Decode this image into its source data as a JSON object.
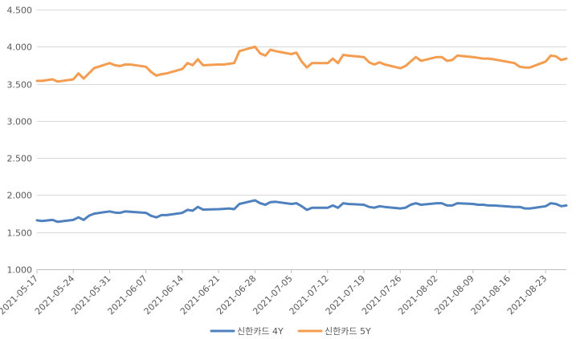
{
  "chart_data": {
    "type": "line",
    "title": "",
    "xlabel": "",
    "ylabel": "",
    "ylim": [
      1.0,
      4.5
    ],
    "yticks": [
      "1.000",
      "1.500",
      "2.000",
      "2.500",
      "3.000",
      "3.500",
      "4.000",
      "4.500"
    ],
    "x_tick_labels": [
      "2021-05-17",
      "2021-05-24",
      "2021-05-31",
      "2021-06-07",
      "2021-06-14",
      "2021-06-21",
      "2021-06-28",
      "2021-07-05",
      "2021-07-12",
      "2021-07-19",
      "2021-07-26",
      "2021-08-02",
      "2021-08-09",
      "2021-08-16",
      "2021-08-23"
    ],
    "grid": true,
    "legend_position": "bottom",
    "x": [
      "2021-05-17",
      "2021-05-18",
      "2021-05-20",
      "2021-05-21",
      "2021-05-24",
      "2021-05-25",
      "2021-05-26",
      "2021-05-27",
      "2021-05-28",
      "2021-05-31",
      "2021-06-01",
      "2021-06-02",
      "2021-06-03",
      "2021-06-04",
      "2021-06-07",
      "2021-06-08",
      "2021-06-09",
      "2021-06-10",
      "2021-06-11",
      "2021-06-14",
      "2021-06-15",
      "2021-06-16",
      "2021-06-17",
      "2021-06-18",
      "2021-06-21",
      "2021-06-22",
      "2021-06-23",
      "2021-06-24",
      "2021-06-25",
      "2021-06-28",
      "2021-06-29",
      "2021-06-30",
      "2021-07-01",
      "2021-07-02",
      "2021-07-05",
      "2021-07-06",
      "2021-07-07",
      "2021-07-08",
      "2021-07-09",
      "2021-07-12",
      "2021-07-13",
      "2021-07-14",
      "2021-07-15",
      "2021-07-16",
      "2021-07-19",
      "2021-07-20",
      "2021-07-21",
      "2021-07-22",
      "2021-07-23",
      "2021-07-26",
      "2021-07-27",
      "2021-07-28",
      "2021-07-29",
      "2021-07-30",
      "2021-08-02",
      "2021-08-03",
      "2021-08-04",
      "2021-08-05",
      "2021-08-06",
      "2021-08-09",
      "2021-08-10",
      "2021-08-11",
      "2021-08-12",
      "2021-08-13",
      "2021-08-17",
      "2021-08-18",
      "2021-08-19",
      "2021-08-20",
      "2021-08-23",
      "2021-08-24",
      "2021-08-25",
      "2021-08-26",
      "2021-08-27"
    ],
    "series": [
      {
        "name": "신한카드 4Y",
        "color": "#4E81BD",
        "values": [
          1.66,
          1.65,
          1.665,
          1.64,
          1.665,
          1.7,
          1.665,
          1.72,
          1.75,
          1.78,
          1.765,
          1.76,
          1.78,
          1.775,
          1.76,
          1.72,
          1.7,
          1.73,
          1.73,
          1.76,
          1.8,
          1.79,
          1.84,
          1.805,
          1.81,
          1.815,
          1.82,
          1.81,
          1.88,
          1.93,
          1.89,
          1.87,
          1.905,
          1.91,
          1.88,
          1.89,
          1.85,
          1.8,
          1.83,
          1.83,
          1.86,
          1.83,
          1.89,
          1.88,
          1.87,
          1.84,
          1.83,
          1.85,
          1.84,
          1.82,
          1.83,
          1.87,
          1.89,
          1.87,
          1.89,
          1.89,
          1.86,
          1.86,
          1.89,
          1.88,
          1.87,
          1.87,
          1.86,
          1.86,
          1.84,
          1.84,
          1.82,
          1.82,
          1.85,
          1.89,
          1.88,
          1.85,
          1.86
        ]
      },
      {
        "name": "신한카드 5Y",
        "color": "#F49C4F",
        "values": [
          3.54,
          3.54,
          3.56,
          3.53,
          3.56,
          3.64,
          3.57,
          3.64,
          3.71,
          3.78,
          3.75,
          3.74,
          3.76,
          3.76,
          3.73,
          3.66,
          3.61,
          3.63,
          3.64,
          3.7,
          3.78,
          3.75,
          3.83,
          3.75,
          3.76,
          3.76,
          3.77,
          3.78,
          3.94,
          4.0,
          3.91,
          3.88,
          3.96,
          3.94,
          3.9,
          3.92,
          3.8,
          3.72,
          3.78,
          3.78,
          3.84,
          3.78,
          3.89,
          3.88,
          3.86,
          3.79,
          3.76,
          3.79,
          3.76,
          3.71,
          3.74,
          3.8,
          3.86,
          3.81,
          3.86,
          3.86,
          3.81,
          3.82,
          3.88,
          3.86,
          3.85,
          3.84,
          3.84,
          3.83,
          3.78,
          3.73,
          3.72,
          3.72,
          3.8,
          3.88,
          3.87,
          3.82,
          3.84
        ]
      }
    ]
  }
}
